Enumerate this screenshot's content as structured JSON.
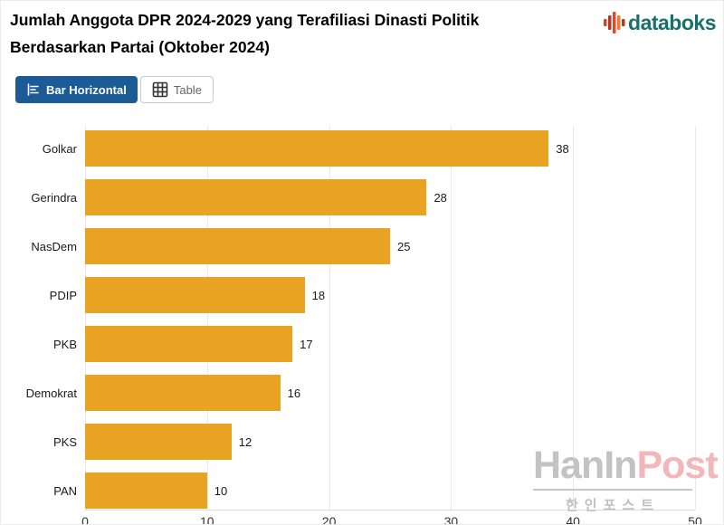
{
  "header": {
    "title_lines": [
      "Jumlah Anggota DPR 2024-2029 yang Terafiliasi Dinasti Politik",
      "Berdasarkan Partai (Oktober 2024)"
    ],
    "logo_text": "databoks"
  },
  "tabs": {
    "bar_horizontal": "Bar Horizontal",
    "table": "Table"
  },
  "chart_data": {
    "type": "bar",
    "orientation": "horizontal",
    "title": "Jumlah Anggota DPR 2024-2029 yang Terafiliasi Dinasti Politik Berdasarkan Partai (Oktober 2024)",
    "categories": [
      "Golkar",
      "Gerindra",
      "NasDem",
      "PDIP",
      "PKB",
      "Demokrat",
      "PKS",
      "PAN"
    ],
    "values": [
      38,
      28,
      25,
      18,
      17,
      16,
      12,
      10
    ],
    "xlabel": "",
    "ylabel": "",
    "xlim": [
      0,
      50
    ],
    "xticks": [
      0,
      10,
      20,
      30,
      40,
      50
    ],
    "grid": true,
    "legend": false,
    "bar_color": "#e7a321"
  },
  "watermark": {
    "main_part1": "HanIn",
    "main_part2": "Post",
    "subtitle": "한인포스트"
  },
  "colors": {
    "bar": "#e7a321",
    "tab_active_bg": "#1d5b97",
    "logo_teal": "#17706b",
    "logo_red": "#d04330",
    "logo_orange": "#ed7d31",
    "watermark_gray": "#c3c3c3",
    "watermark_pink": "#f3b6bb",
    "gridline": "#e9e9e9"
  }
}
